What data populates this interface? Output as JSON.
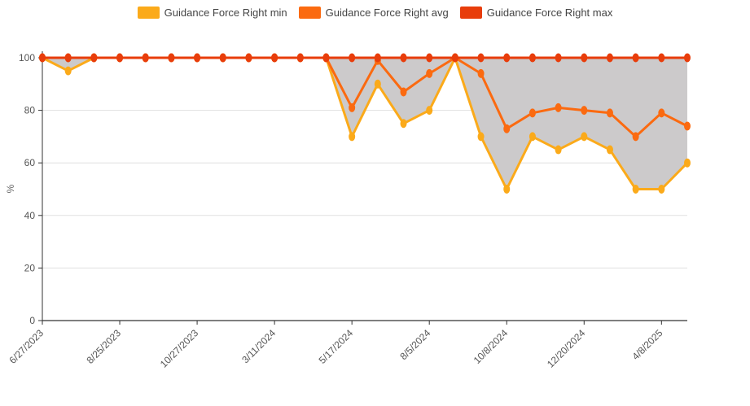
{
  "chart_data": {
    "type": "line",
    "title": "",
    "xlabel": "",
    "ylabel": "%",
    "ylim": [
      0,
      100
    ],
    "yticks": [
      0,
      20,
      40,
      60,
      80,
      100
    ],
    "grid": "horizontal",
    "legend_position": "top-center",
    "band_between": [
      "Guidance Force Right min",
      "Guidance Force Right max"
    ],
    "band_color": "#cccacb",
    "x_tick_labels": [
      "6/27/2023",
      "8/25/2023",
      "10/27/2023",
      "3/11/2024",
      "5/17/2024",
      "8/5/2024",
      "10/8/2024",
      "12/20/2024",
      "4/8/2025"
    ],
    "x_tick_positions": [
      0,
      3,
      6,
      9,
      12,
      15,
      18,
      21,
      24
    ],
    "point_count": 26,
    "series": [
      {
        "name": "Guidance Force Right min",
        "color": "#fbaa1a",
        "values": [
          100,
          95,
          100,
          100,
          100,
          100,
          100,
          100,
          100,
          100,
          100,
          100,
          70,
          90,
          75,
          80,
          100,
          70,
          50,
          70,
          65,
          70,
          65,
          50,
          50,
          60
        ]
      },
      {
        "name": "Guidance Force Right avg",
        "color": "#fb6a10",
        "values": [
          100,
          100,
          100,
          100,
          100,
          100,
          100,
          100,
          100,
          100,
          100,
          100,
          81,
          99,
          87,
          94,
          100,
          94,
          73,
          79,
          81,
          80,
          79,
          70,
          79,
          74
        ]
      },
      {
        "name": "Guidance Force Right max",
        "color": "#e83d0b",
        "values": [
          100,
          100,
          100,
          100,
          100,
          100,
          100,
          100,
          100,
          100,
          100,
          100,
          100,
          100,
          100,
          100,
          100,
          100,
          100,
          100,
          100,
          100,
          100,
          100,
          100,
          100
        ]
      }
    ]
  }
}
